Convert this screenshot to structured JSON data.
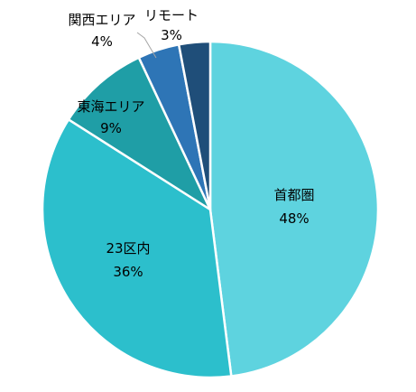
{
  "chart_data": {
    "type": "pie",
    "title": "",
    "categories": [
      "首都圏",
      "23区内",
      "東海エリア",
      "関西エリア",
      "リモート"
    ],
    "values": [
      48,
      36,
      9,
      4,
      3
    ],
    "value_labels": [
      "48%",
      "36%",
      "9%",
      "4%",
      "3%"
    ],
    "colors": [
      "#5ED3DF",
      "#2CBFCC",
      "#1F9EA6",
      "#2E75B6",
      "#1F4E79"
    ],
    "start": "12 o'clock",
    "direction": "clockwise",
    "legend": "none"
  }
}
